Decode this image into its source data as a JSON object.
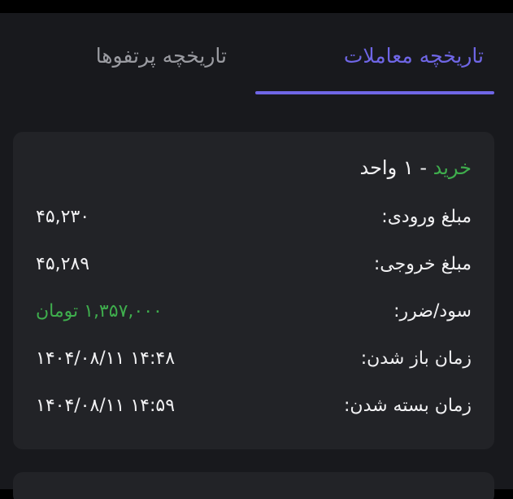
{
  "tabs": [
    {
      "label": "تاریخچه معاملات",
      "active": true
    },
    {
      "label": "تاریخچه پرتفوها",
      "active": false
    }
  ],
  "colors": {
    "accent": "#6f66e6",
    "profit": "#3fae4d"
  },
  "trade": {
    "side": "خرید",
    "quantity": "- ۱ واحد",
    "rows": [
      {
        "label": "مبلغ ورودی:",
        "value": "۴۵,۲۳۰"
      },
      {
        "label": "مبلغ خروجی:",
        "value": "۴۵,۲۸۹"
      },
      {
        "label": "سود/ضرر:",
        "value": "۱,۳۵۷,۰۰۰ تومان"
      },
      {
        "label": "زمان باز شدن:",
        "value": "۱۴۰۴/۰۸/۱۱ ۱۴:۴۸"
      },
      {
        "label": "زمان بسته شدن:",
        "value": "۱۴۰۴/۰۸/۱۱ ۱۴:۵۹"
      }
    ]
  }
}
